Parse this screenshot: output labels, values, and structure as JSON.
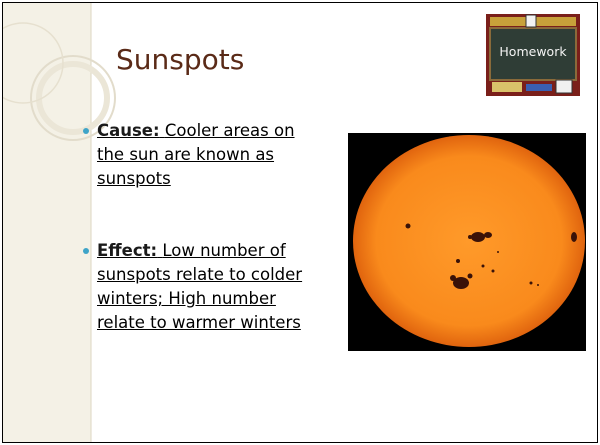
{
  "title": "Sunspots",
  "badge": "Homework",
  "bullets": [
    {
      "label": "Cause:",
      "lines": [
        "Cooler areas on",
        "the sun are known as",
        "sunspots"
      ]
    },
    {
      "label": "Effect:",
      "lines": [
        "Low number of",
        "sunspots relate to colder",
        "winters; High number",
        "relate to warmer winters"
      ]
    }
  ]
}
